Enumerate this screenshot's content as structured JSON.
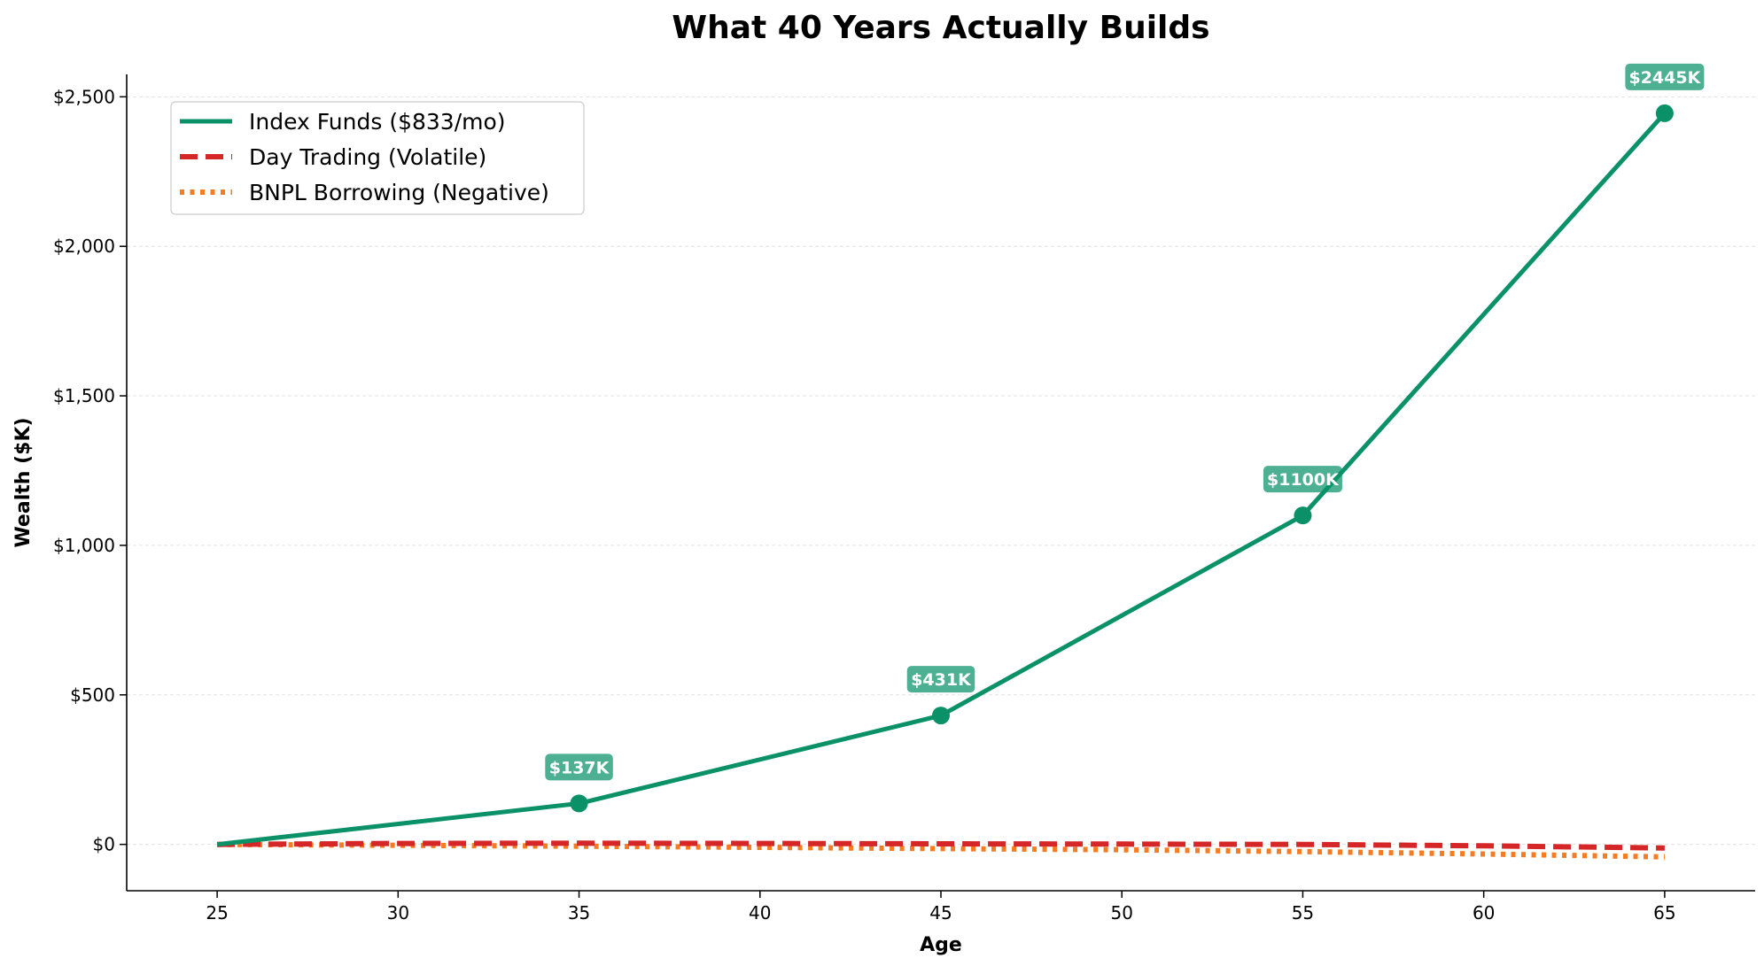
{
  "chart_data": {
    "type": "line",
    "title": "What 40 Years Actually Builds",
    "xlabel": "Age",
    "ylabel": "Wealth ($K)",
    "xlim": [
      22.5,
      67.5
    ],
    "ylim": [
      -155,
      2575
    ],
    "x_ticks": [
      25,
      30,
      35,
      40,
      45,
      50,
      55,
      60,
      65
    ],
    "x_tick_labels": [
      "25",
      "30",
      "35",
      "40",
      "45",
      "50",
      "55",
      "60",
      "65"
    ],
    "y_ticks": [
      0,
      500,
      1000,
      1500,
      2000,
      2500
    ],
    "y_tick_labels": [
      "$0",
      "$500",
      "$1,000",
      "$1,500",
      "$2,000",
      "$2,500"
    ],
    "grid": "horizontal dashed",
    "legend_position": "top-left",
    "series": [
      {
        "name": "Index Funds ($833/mo)",
        "color": "#0a9168",
        "style": "solid",
        "x": [
          25,
          35,
          45,
          55,
          65
        ],
        "y": [
          0,
          137,
          431,
          1100,
          2445
        ]
      },
      {
        "name": "Day Trading (Volatile)",
        "color": "#d62728",
        "style": "dashed",
        "x": [
          25,
          30,
          35,
          40,
          45,
          50,
          55,
          60,
          65
        ],
        "y": [
          0,
          3,
          4,
          3,
          2,
          1,
          0,
          -5,
          -12
        ]
      },
      {
        "name": "BNPL Borrowing (Negative)",
        "color": "#f57c22",
        "style": "dotted",
        "x": [
          25,
          30,
          35,
          40,
          45,
          50,
          55,
          60,
          65
        ],
        "y": [
          0,
          -3,
          -6,
          -10,
          -14,
          -18,
          -24,
          -32,
          -42
        ]
      }
    ],
    "markers": [
      {
        "x": 35,
        "y": 137,
        "label": "$137K"
      },
      {
        "x": 45,
        "y": 431,
        "label": "$431K"
      },
      {
        "x": 55,
        "y": 1100,
        "label": "$1100K"
      },
      {
        "x": 65,
        "y": 2445,
        "label": "$2445K"
      }
    ]
  }
}
